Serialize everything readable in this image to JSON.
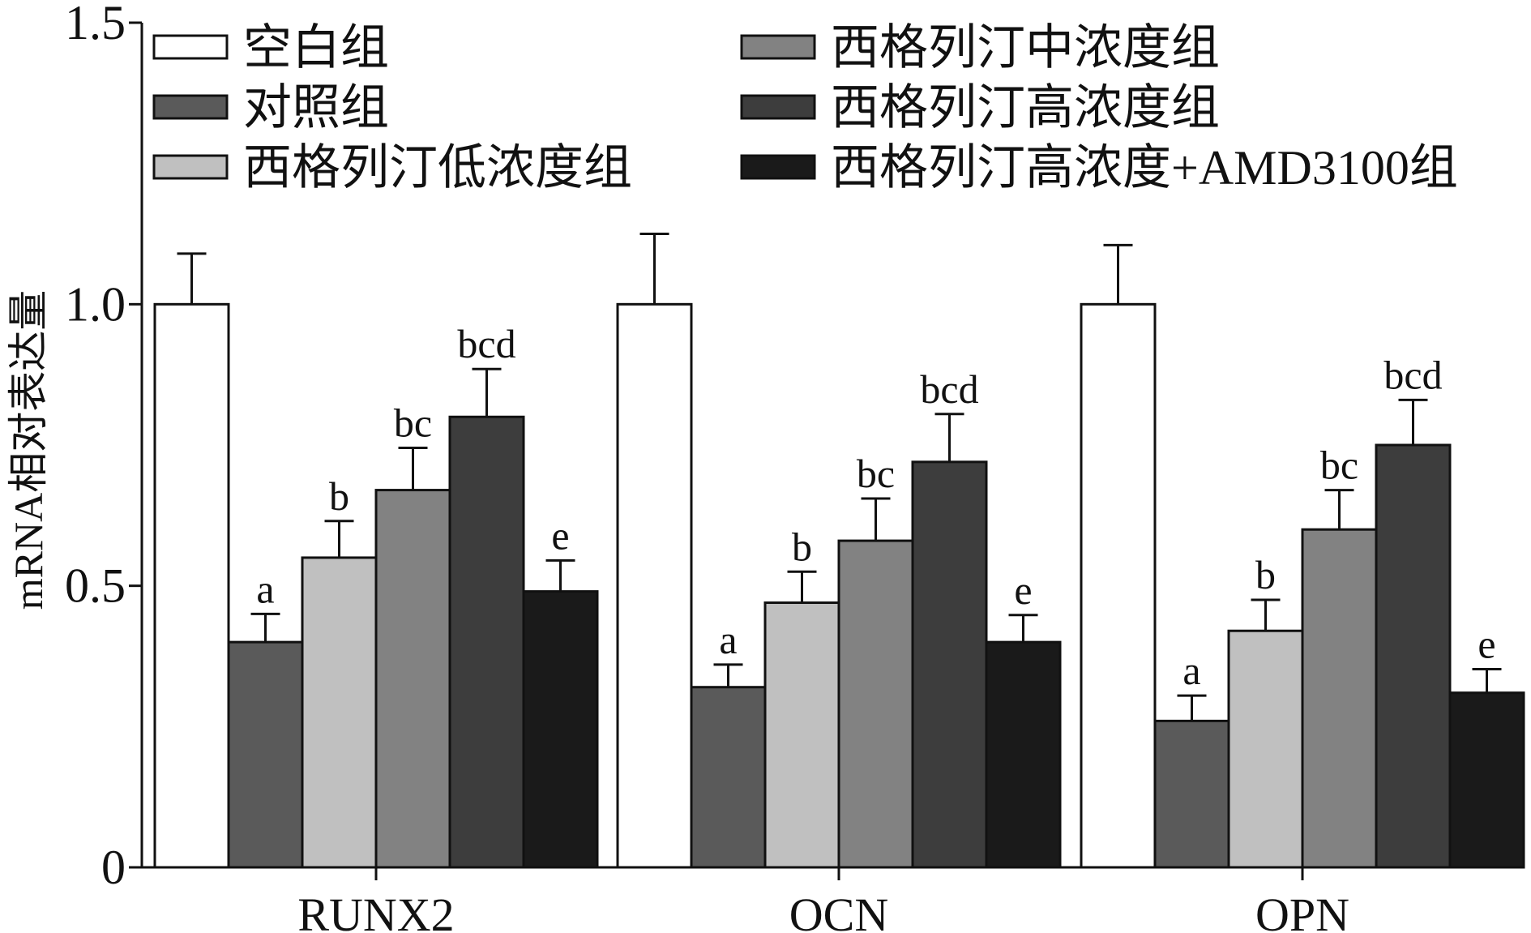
{
  "chart_data": {
    "type": "bar",
    "title": "",
    "xlabel": "",
    "ylabel": "mRNA相对表达量",
    "ylim": [
      0,
      1.5
    ],
    "yticks": [
      "0",
      "0.5",
      "1.0",
      "1.5"
    ],
    "ytick_values": [
      0,
      0.5,
      1.0,
      1.5
    ],
    "categories": [
      "RUNX2",
      "OCN",
      "OPN"
    ],
    "grid": false,
    "legend_position": "top",
    "series": [
      {
        "name": "空白组",
        "color": "#ffffff",
        "values": [
          1.0,
          1.0,
          1.0
        ],
        "errors": [
          0.09,
          0.125,
          0.105
        ],
        "labels": [
          "",
          "",
          ""
        ]
      },
      {
        "name": "对照组",
        "color": "#5a5a5a",
        "values": [
          0.4,
          0.32,
          0.26
        ],
        "errors": [
          0.05,
          0.04,
          0.045
        ],
        "labels": [
          "a",
          "a",
          "a"
        ]
      },
      {
        "name": "西格列汀低浓度组",
        "color": "#c0c0c0",
        "values": [
          0.55,
          0.47,
          0.42
        ],
        "errors": [
          0.065,
          0.055,
          0.055
        ],
        "labels": [
          "b",
          "b",
          "b"
        ]
      },
      {
        "name": "西格列汀中浓度组",
        "color": "#828282",
        "values": [
          0.67,
          0.58,
          0.6
        ],
        "errors": [
          0.075,
          0.075,
          0.07
        ],
        "labels": [
          "bc",
          "bc",
          "bc"
        ]
      },
      {
        "name": "西格列汀高浓度组",
        "color": "#3d3d3d",
        "values": [
          0.8,
          0.72,
          0.75
        ],
        "errors": [
          0.085,
          0.085,
          0.08
        ],
        "labels": [
          "bcd",
          "bcd",
          "bcd"
        ]
      },
      {
        "name": "西格列汀高浓度+AMD3100组",
        "color": "#1a1a1a",
        "values": [
          0.49,
          0.4,
          0.31
        ],
        "errors": [
          0.055,
          0.048,
          0.042
        ],
        "labels": [
          "e",
          "e",
          "e"
        ]
      }
    ]
  }
}
